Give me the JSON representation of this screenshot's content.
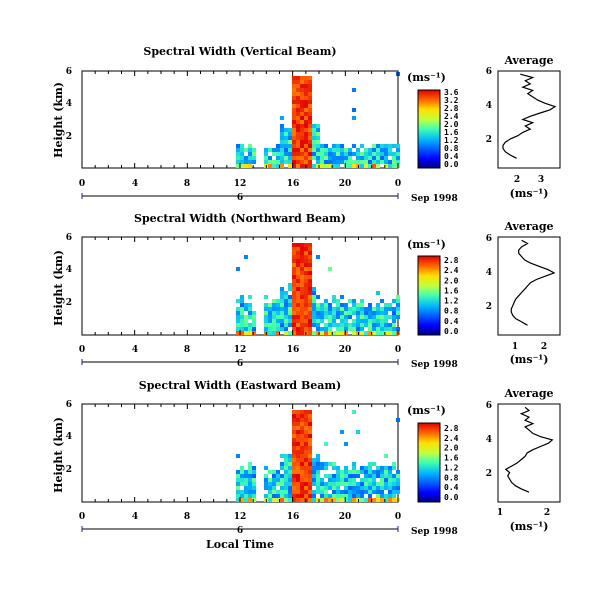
{
  "shared": {
    "date_label": "Sep 1998",
    "local_time_label": "Local Time",
    "day_marker": "6",
    "height_label": "Height (km)",
    "x_ticks": [
      "0",
      "4",
      "8",
      "12",
      "16",
      "20",
      "0"
    ],
    "y_ticks": [
      "6",
      "4",
      "2"
    ],
    "unit_label": "(ms⁻¹)",
    "average_title": "Average"
  },
  "chart_data": [
    {
      "type": "heatmap",
      "title": "Spectral Width (Vertical Beam)",
      "xlabel": "",
      "ylabel": "Height (km)",
      "xlim": [
        0,
        24
      ],
      "ylim": [
        0,
        6
      ],
      "colorbar": {
        "unit": "(ms⁻¹)",
        "ticks": [
          "3.6",
          "3.2",
          "2.8",
          "2.4",
          "2.0",
          "1.6",
          "1.2",
          "0.8",
          "0.4",
          "0.0"
        ],
        "min": 0.0,
        "max": 3.6
      },
      "data_start_hour": 11.7,
      "profile": {
        "title": "Average",
        "xlabel": "(ms⁻¹)",
        "x_ticks": [
          "2",
          "3"
        ],
        "xlim": [
          1.2,
          3.7
        ],
        "ylim": [
          0,
          6
        ],
        "y": [
          0.6,
          0.8,
          1.0,
          1.2,
          1.4,
          1.6,
          1.8,
          2.0,
          2.2,
          2.4,
          2.6,
          2.8,
          3.0,
          3.2,
          3.4,
          3.6,
          3.8,
          4.0,
          4.2,
          4.4,
          4.6,
          4.8,
          5.0,
          5.2,
          5.4,
          5.6,
          5.8
        ],
        "x": [
          1.95,
          1.7,
          1.5,
          1.4,
          1.4,
          1.5,
          1.7,
          2.0,
          2.2,
          2.5,
          2.3,
          2.6,
          2.2,
          2.5,
          2.9,
          3.3,
          3.5,
          3.1,
          2.8,
          2.6,
          2.4,
          2.6,
          2.2,
          2.5,
          2.3,
          2.6,
          2.1
        ]
      }
    },
    {
      "type": "heatmap",
      "title": "Spectral Width (Northward Beam)",
      "xlabel": "",
      "ylabel": "Height (km)",
      "xlim": [
        0,
        24
      ],
      "ylim": [
        0,
        6
      ],
      "colorbar": {
        "unit": "(ms⁻¹)",
        "ticks": [
          "2.8",
          "2.4",
          "2.0",
          "1.6",
          "1.2",
          "0.8",
          "0.4",
          "0.0"
        ],
        "min": 0.0,
        "max": 2.8
      },
      "data_start_hour": 11.7,
      "profile": {
        "title": "Average",
        "xlabel": "(ms⁻¹)",
        "x_ticks": [
          "1",
          "2"
        ],
        "xlim": [
          0.5,
          2.6
        ],
        "ylim": [
          0,
          6
        ],
        "y": [
          0.6,
          0.8,
          1.0,
          1.2,
          1.4,
          1.6,
          1.8,
          2.0,
          2.2,
          2.4,
          2.6,
          2.8,
          3.0,
          3.2,
          3.4,
          3.6,
          3.8,
          4.0,
          4.2,
          4.4,
          4.6,
          4.8,
          5.0,
          5.2,
          5.4,
          5.6,
          5.8
        ],
        "x": [
          1.5,
          1.3,
          1.1,
          1.0,
          0.95,
          0.95,
          1.0,
          1.05,
          1.1,
          1.2,
          1.3,
          1.4,
          1.5,
          1.6,
          1.8,
          2.1,
          2.4,
          2.2,
          1.9,
          1.6,
          1.4,
          1.3,
          1.2,
          1.2,
          1.3,
          1.5,
          1.3
        ]
      }
    },
    {
      "type": "heatmap",
      "title": "Spectral Width (Eastward Beam)",
      "xlabel": "Local Time",
      "ylabel": "Height (km)",
      "xlim": [
        0,
        24
      ],
      "ylim": [
        0,
        6
      ],
      "colorbar": {
        "unit": "(ms⁻¹)",
        "ticks": [
          "2.8",
          "2.4",
          "2.0",
          "1.6",
          "1.2",
          "0.8",
          "0.4",
          "0.0"
        ],
        "min": 0.0,
        "max": 2.8
      },
      "data_start_hour": 11.7,
      "profile": {
        "title": "Average",
        "xlabel": "(ms⁻¹)",
        "x_ticks": [
          "1",
          "2"
        ],
        "xlim": [
          0.8,
          2.4
        ],
        "ylim": [
          0,
          6
        ],
        "y": [
          0.6,
          0.8,
          1.0,
          1.2,
          1.4,
          1.6,
          1.8,
          2.0,
          2.2,
          2.4,
          2.6,
          2.8,
          3.0,
          3.2,
          3.4,
          3.6,
          3.8,
          4.0,
          4.2,
          4.4,
          4.6,
          4.8,
          5.0,
          5.2,
          5.4,
          5.6,
          5.8
        ],
        "x": [
          1.6,
          1.4,
          1.25,
          1.15,
          1.1,
          1.05,
          1.1,
          1.0,
          1.15,
          1.3,
          1.4,
          1.5,
          1.55,
          1.7,
          1.9,
          2.1,
          2.2,
          1.9,
          1.7,
          1.6,
          1.5,
          1.7,
          1.5,
          1.6,
          1.4,
          1.6,
          1.5
        ]
      }
    }
  ]
}
